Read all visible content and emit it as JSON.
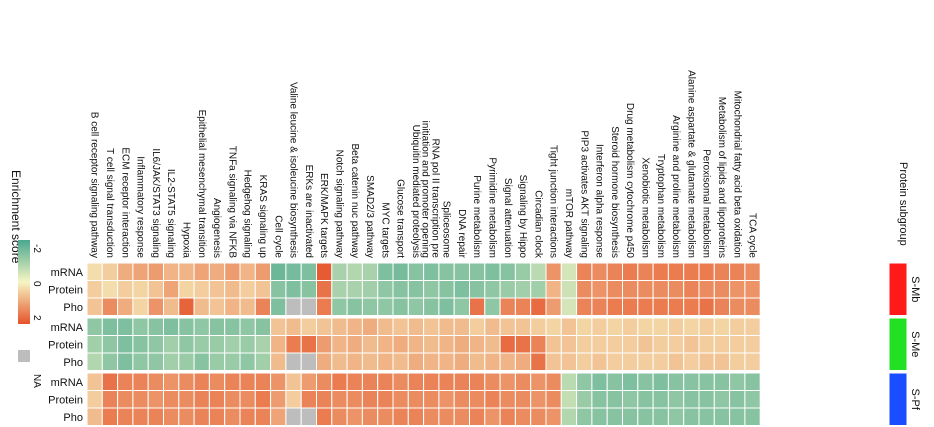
{
  "chart_data": {
    "type": "heatmap",
    "title": "",
    "legend": {
      "title": "Enrichment score",
      "tick_labels": [
        "-2",
        "0",
        "2"
      ],
      "range": [
        -2,
        2
      ],
      "na_label": "NA",
      "position": "left"
    },
    "colors": {
      "low": "#4aa88f",
      "mid": "#f7f5c3",
      "high": "#e5532a",
      "na": "#bdbdbd",
      "cell_border": "#ffffff"
    },
    "columns": [
      "B cell receptor signaling pathway",
      "T cell signal transduction",
      "ECM receptor interaction",
      "Inflammatory response",
      "IL6/JAK/STAT3 signaling",
      "IL2-STAT5 signaling",
      "Hypoxia",
      "Epithelial mesenchymal transition",
      "Angiogenesis",
      "TNFa signaling via NFKB",
      "Hedgehog signaling",
      "KRAS signaling up",
      "Cell cycle",
      "Valine leucine & isoleucine biosynthesis",
      "ERKs are inactivated",
      "ERK/MAPK targets",
      "Notch signaling pathway",
      "Beta catenin nuc pathway",
      "SMAD2/3 pathway",
      "MYC targets",
      "Glucose transport",
      "Ubiquitin mediated proteolysis",
      "RNA pol II transcription pre initiation and promoter opening",
      "Spliceosome",
      "DNA repair",
      "Purine metabolism",
      "Pyrimidine metabolism",
      "Signal attenuation",
      "Signaling by Hippo",
      "Circadian clock",
      "Tight junction interactions",
      "mTOR pathway",
      "PIP3 activates AKT signaling",
      "Interferon alpha response",
      "Steroid hormone biosynthesis",
      "Drug metabolism cytochrome p450",
      "Xenobiotic metabolism",
      "Tryptophan metabolism",
      "Arginine and proline metabolism",
      "Alanine aspartate & glutamate metabolism",
      "Peroxisomal metabolism",
      "Metabolism of lipids and lipoproteins",
      "Mitochondrial fatty acid beta oxidation",
      "TCA cycle"
    ],
    "rows": [
      "mRNA",
      "Protein",
      "Pho",
      "mRNA",
      "Protein",
      "Pho",
      "mRNA",
      "Protein",
      "Pho"
    ],
    "subgroup_header": "Protein subgroup",
    "subgroups": [
      {
        "name": "S-Mb",
        "color": "#ff1a1a",
        "rows": [
          0,
          1,
          2
        ]
      },
      {
        "name": "S-Me",
        "color": "#22e022",
        "rows": [
          3,
          4,
          5
        ]
      },
      {
        "name": "S-Pf",
        "color": "#1a4dff",
        "rows": [
          6,
          7,
          8
        ]
      }
    ],
    "values": [
      [
        0.3,
        0.5,
        0.9,
        1.0,
        1.1,
        0.8,
        0.8,
        1.0,
        0.9,
        1.1,
        0.8,
        1.1,
        -1.6,
        -1.5,
        -1.4,
        1.9,
        -0.9,
        -0.8,
        -0.9,
        -1.4,
        -1.5,
        -1.3,
        -1.4,
        -1.3,
        -1.3,
        -1.3,
        -1.4,
        -1.3,
        -1.1,
        -0.7,
        1.2,
        -0.4,
        1.4,
        1.3,
        1.4,
        1.5,
        1.4,
        1.5,
        1.5,
        1.5,
        1.5,
        1.4,
        1.4,
        1.3
      ],
      [
        0.5,
        0.3,
        0.5,
        0.4,
        0.6,
        1.0,
        0.4,
        0.5,
        0.6,
        0.7,
        0.5,
        0.6,
        -1.3,
        -1.4,
        -1.3,
        1.6,
        -0.9,
        -0.9,
        -1.0,
        -1.2,
        -1.3,
        -1.3,
        -1.2,
        -1.3,
        -1.4,
        -1.3,
        -1.2,
        -1.1,
        -1.0,
        -1.0,
        0.8,
        -0.5,
        1.3,
        1.2,
        1.3,
        1.3,
        1.3,
        1.3,
        1.3,
        1.4,
        1.3,
        1.3,
        1.2,
        1.2
      ],
      [
        0.6,
        1.3,
        0.9,
        0.4,
        1.2,
        0.7,
        1.8,
        0.7,
        0.6,
        0.8,
        0.7,
        1.4,
        -1.4,
        null,
        null,
        1.5,
        -1.2,
        -1.3,
        -1.2,
        -1.2,
        -1.3,
        -1.2,
        -1.3,
        -1.4,
        -1.2,
        1.6,
        -1.2,
        1.4,
        1.4,
        1.7,
        1.1,
        -0.4,
        1.4,
        1.4,
        1.5,
        1.5,
        1.5,
        1.5,
        1.5,
        1.5,
        1.6,
        1.4,
        1.3,
        1.3
      ],
      [
        -1.2,
        -1.4,
        -1.4,
        -1.2,
        -1.3,
        -1.4,
        -1.3,
        -1.2,
        -1.3,
        -1.3,
        -1.2,
        -1.3,
        0.6,
        0.7,
        0.5,
        0.6,
        0.7,
        0.8,
        0.9,
        0.7,
        0.6,
        0.7,
        0.6,
        0.7,
        0.7,
        0.5,
        0.7,
        0.6,
        0.6,
        0.5,
        0.4,
        0.6,
        0.4,
        0.5,
        0.4,
        0.5,
        0.4,
        0.4,
        0.5,
        0.4,
        0.5,
        0.4,
        0.5,
        0.5
      ],
      [
        -1.0,
        -1.2,
        -1.4,
        -1.3,
        -1.2,
        -1.0,
        -1.2,
        -1.1,
        -1.1,
        -1.0,
        -1.1,
        -0.9,
        0.8,
        1.5,
        1.6,
        1.1,
        0.8,
        0.9,
        0.7,
        0.8,
        0.9,
        0.8,
        0.7,
        0.8,
        0.9,
        0.8,
        0.7,
        1.7,
        1.6,
        1.4,
        0.6,
        0.6,
        0.5,
        0.5,
        0.5,
        0.5,
        0.6,
        0.5,
        0.5,
        0.6,
        0.5,
        0.5,
        0.5,
        0.5
      ],
      [
        -0.8,
        -1.2,
        -1.4,
        -1.2,
        -1.2,
        -1.0,
        -1.1,
        -1.3,
        -1.1,
        -1.1,
        -1.2,
        -1.0,
        0.7,
        null,
        null,
        0.9,
        0.7,
        0.8,
        0.7,
        0.8,
        0.7,
        0.9,
        0.8,
        0.8,
        0.9,
        0.7,
        0.8,
        0.8,
        0.9,
        1.6,
        0.6,
        0.6,
        0.5,
        0.6,
        0.5,
        0.5,
        0.5,
        0.5,
        0.6,
        0.5,
        0.6,
        0.6,
        0.5,
        0.5
      ],
      [
        0.6,
        1.6,
        1.4,
        1.4,
        1.3,
        1.2,
        1.3,
        1.4,
        1.3,
        1.4,
        1.4,
        1.4,
        1.2,
        0.6,
        1.1,
        1.3,
        1.5,
        1.4,
        1.4,
        1.4,
        1.3,
        1.4,
        1.4,
        1.4,
        1.4,
        1.4,
        1.3,
        1.2,
        1.3,
        1.2,
        1.3,
        -0.7,
        -1.2,
        -1.4,
        -1.3,
        -1.4,
        -1.3,
        -1.4,
        -1.3,
        -1.3,
        -1.3,
        -1.3,
        -1.2,
        -1.3
      ],
      [
        0.5,
        1.4,
        1.3,
        1.3,
        1.2,
        1.3,
        1.3,
        1.4,
        1.4,
        1.3,
        1.3,
        1.5,
        1.1,
        0.5,
        1.4,
        1.4,
        1.3,
        1.3,
        1.4,
        1.4,
        1.3,
        1.3,
        1.3,
        1.2,
        1.3,
        1.3,
        1.4,
        1.3,
        1.3,
        1.2,
        1.3,
        -0.6,
        -1.1,
        -1.3,
        -1.3,
        -1.2,
        -1.3,
        -1.3,
        -1.2,
        -1.3,
        -1.3,
        -1.2,
        -1.3,
        -1.2
      ],
      [
        0.7,
        1.5,
        1.4,
        1.4,
        1.4,
        1.3,
        1.3,
        1.4,
        1.4,
        1.3,
        1.4,
        1.4,
        1.0,
        null,
        null,
        1.5,
        1.3,
        1.2,
        1.3,
        1.3,
        1.4,
        1.4,
        1.3,
        1.3,
        1.3,
        1.4,
        1.2,
        1.4,
        1.3,
        1.3,
        1.2,
        -0.8,
        -1.2,
        -1.3,
        -1.3,
        -1.3,
        -1.3,
        -1.3,
        -1.2,
        -1.3,
        -1.3,
        -1.3,
        -1.3,
        -1.3
      ]
    ]
  }
}
